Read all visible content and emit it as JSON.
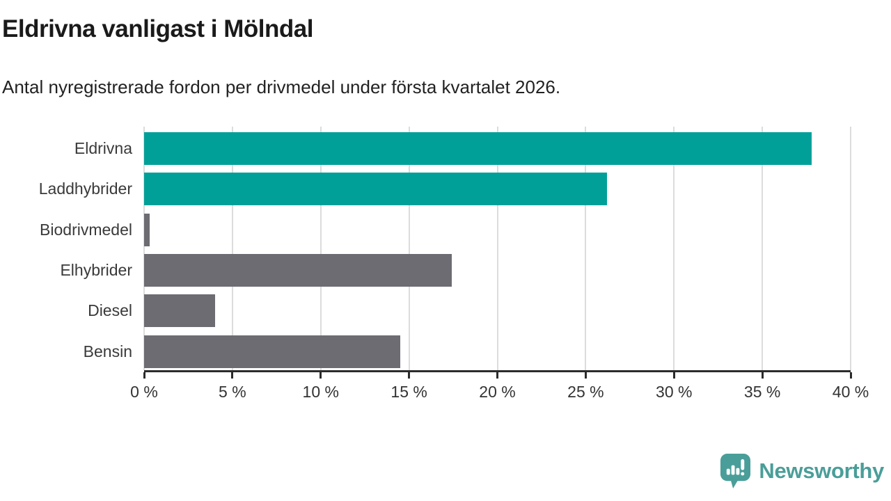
{
  "header": {
    "title": "Eldrivna vanligast i Mölndal",
    "subtitle": "Antal nyregistrerade fordon per drivmedel under första kvartalet 2026."
  },
  "chart_data": {
    "type": "bar",
    "orientation": "horizontal",
    "title": "Eldrivna vanligast i Mölndal",
    "subtitle": "Antal nyregistrerade fordon per drivmedel under första kvartalet 2026.",
    "categories": [
      "Eldrivna",
      "Laddhybrider",
      "Biodrivmedel",
      "Elhybrider",
      "Diesel",
      "Bensin"
    ],
    "values": [
      37.8,
      26.2,
      0.3,
      17.4,
      4.0,
      14.5
    ],
    "unit": "%",
    "xlim": [
      0,
      40
    ],
    "x_ticks": [
      0,
      5,
      10,
      15,
      20,
      25,
      30,
      35,
      40
    ],
    "x_tick_labels": [
      "0 %",
      "5 %",
      "10 %",
      "15 %",
      "20 %",
      "25 %",
      "30 %",
      "35 %",
      "40 %"
    ],
    "grid": true,
    "legend": "none",
    "bar_colors": [
      "#00a099",
      "#00a099",
      "#6c6c72",
      "#6c6c72",
      "#6c6c72",
      "#6c6c72"
    ],
    "highlight_color": "#00a099",
    "default_color": "#6c6c72",
    "gridline_color": "#dcdcdc",
    "axis_color": "#2b2b2b"
  },
  "footer": {
    "brand": "Newsworthy",
    "brand_color": "#4a9e99",
    "logo_icon": "newsworthy-speech-bubble-chart-icon"
  }
}
